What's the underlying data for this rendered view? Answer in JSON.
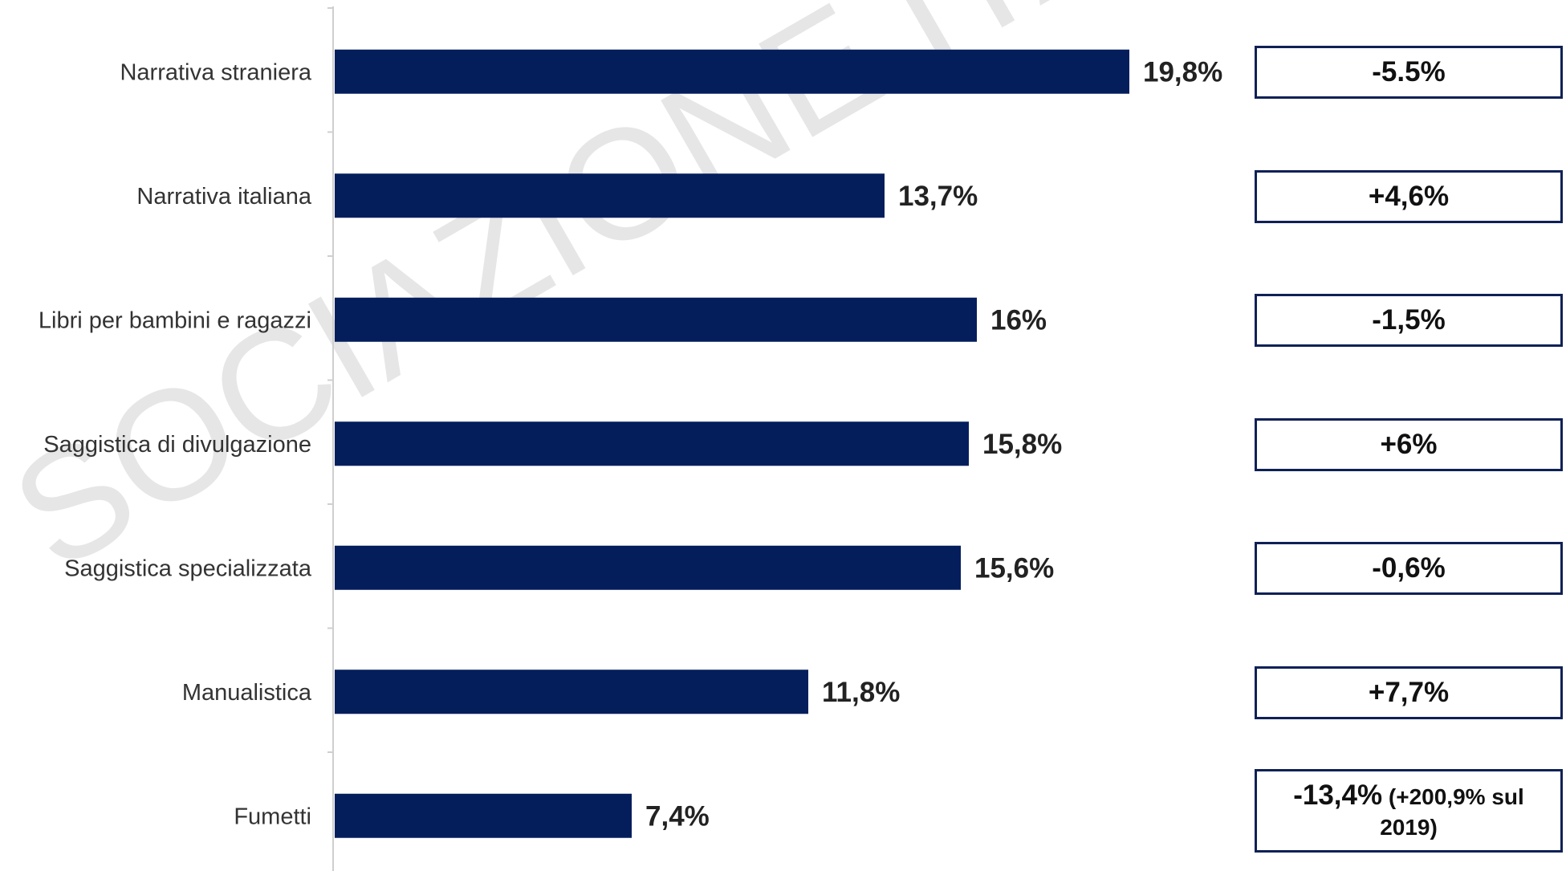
{
  "watermark": "SOCIAZIONE ITALIANA EDITORI",
  "chart_data": {
    "type": "bar",
    "orientation": "horizontal",
    "categories": [
      "Narrativa straniera",
      "Narrativa italiana",
      "Libri per bambini e ragazzi",
      "Saggistica di divulgazione",
      "Saggistica specializzata",
      "Manualistica",
      "Fumetti"
    ],
    "values": [
      19.8,
      13.7,
      16,
      15.8,
      15.6,
      11.8,
      7.4
    ],
    "value_labels": [
      "19,8%",
      "13,7%",
      "16%",
      "15,8%",
      "15,6%",
      "11,8%",
      "7,4%"
    ],
    "variations": [
      {
        "main": "-5.5%",
        "note": ""
      },
      {
        "main": "+4,6%",
        "note": ""
      },
      {
        "main": "-1,5%",
        "note": ""
      },
      {
        "main": "+6%",
        "note": ""
      },
      {
        "main": "-0,6%",
        "note": ""
      },
      {
        "main": "+7,7%",
        "note": ""
      },
      {
        "main": "-13,4%",
        "note": " (+200,9% sul 2019)"
      }
    ],
    "bar_color": "#041e5c",
    "xlim": [
      0,
      20
    ],
    "grid": false,
    "legend": "none"
  }
}
